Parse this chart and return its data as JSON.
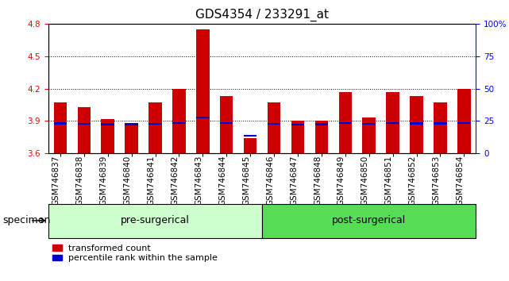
{
  "title": "GDS4354 / 233291_at",
  "samples": [
    "GSM746837",
    "GSM746838",
    "GSM746839",
    "GSM746840",
    "GSM746841",
    "GSM746842",
    "GSM746843",
    "GSM746844",
    "GSM746845",
    "GSM746846",
    "GSM746847",
    "GSM746848",
    "GSM746849",
    "GSM746850",
    "GSM746851",
    "GSM746852",
    "GSM746853",
    "GSM746854"
  ],
  "bar_values": [
    4.07,
    4.03,
    3.92,
    3.88,
    4.07,
    4.2,
    4.75,
    4.13,
    3.74,
    4.07,
    3.9,
    3.9,
    4.17,
    3.93,
    4.17,
    4.13,
    4.07,
    4.2
  ],
  "blue_values": [
    3.875,
    3.872,
    3.87,
    3.868,
    3.874,
    3.88,
    3.93,
    3.878,
    3.76,
    3.874,
    3.865,
    3.868,
    3.878,
    3.872,
    3.878,
    3.876,
    3.876,
    3.88
  ],
  "ymin": 3.6,
  "ymax": 4.8,
  "bar_color": "#cc0000",
  "blue_color": "#0000cc",
  "group1_count": 9,
  "group1_color": "#ccffcc",
  "group2_color": "#55dd55",
  "group_label_pre": "pre-surgerical",
  "group_label_post": "post-surgerical",
  "yticks": [
    3.6,
    3.9,
    4.2,
    4.5,
    4.8
  ],
  "right_yticks": [
    0,
    25,
    50,
    75,
    100
  ],
  "right_ytick_labels": [
    "0",
    "25",
    "50",
    "75",
    "100%"
  ],
  "bar_width": 0.55,
  "title_fontsize": 11,
  "tick_fontsize": 7.5,
  "label_fontsize": 9,
  "legend_fontsize": 8,
  "xtick_bg": "#d8d8d8"
}
